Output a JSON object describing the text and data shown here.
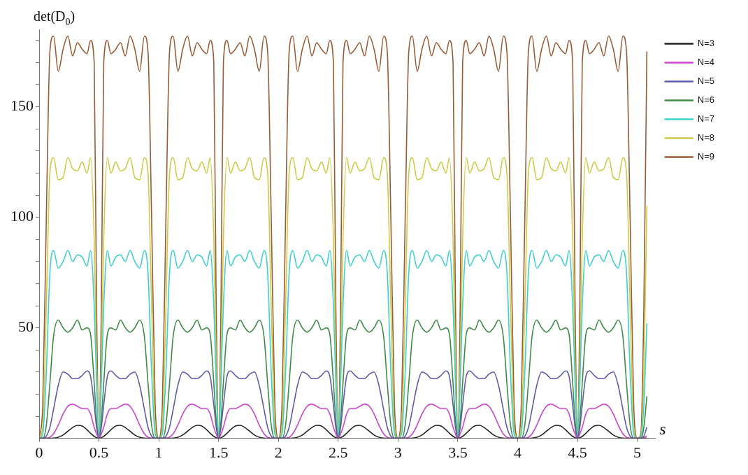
{
  "chart_data": {
    "type": "line",
    "xlabel": "s",
    "ylabel": "det(D$_{0}$)",
    "xlim": [
      0,
      5.15
    ],
    "ylim": [
      0,
      185
    ],
    "xticks": [
      0,
      0.5,
      1,
      1.5,
      2,
      2.5,
      3,
      3.5,
      4,
      4.5,
      5
    ],
    "yticks": [
      {
        "value": 10,
        "label": null
      },
      {
        "value": 20,
        "label": null
      },
      {
        "value": 30,
        "label": null
      },
      {
        "value": 40,
        "label": null
      },
      50,
      {
        "value": 60,
        "label": null
      },
      {
        "value": 70,
        "label": null
      },
      {
        "value": 80,
        "label": null
      },
      {
        "value": 90,
        "label": null
      },
      100,
      {
        "value": 110,
        "label": null
      },
      {
        "value": 120,
        "label": null
      },
      {
        "value": 130,
        "label": null
      },
      {
        "value": 140,
        "label": null
      },
      150,
      {
        "value": 160,
        "label": null
      },
      {
        "value": 170,
        "label": null
      },
      {
        "value": 180,
        "label": null
      }
    ],
    "legend": "right",
    "x": [
      0,
      0.03,
      0.06,
      0.09,
      0.12,
      0.16,
      0.2,
      0.24,
      0.28,
      0.32,
      0.36,
      0.4,
      0.43,
      0.46,
      0.48,
      0.5,
      0.52,
      0.54,
      0.57,
      0.6,
      0.64,
      0.68,
      0.72,
      0.76,
      0.8,
      0.84,
      0.88,
      0.91,
      0.94,
      0.97,
      1,
      1.03,
      1.06,
      1.09,
      1.12,
      1.16,
      1.2,
      1.24,
      1.28,
      1.32,
      1.36,
      1.4,
      1.43,
      1.46,
      1.48,
      1.5,
      1.52,
      1.54,
      1.57,
      1.6,
      1.64,
      1.68,
      1.72,
      1.76,
      1.8,
      1.84,
      1.88,
      1.91,
      1.94,
      1.97,
      2,
      2.03,
      2.06,
      2.09,
      2.12,
      2.16,
      2.2,
      2.24,
      2.28,
      2.32,
      2.36,
      2.4,
      2.43,
      2.46,
      2.48,
      2.5,
      2.52,
      2.54,
      2.57,
      2.6,
      2.64,
      2.68,
      2.72,
      2.76,
      2.8,
      2.84,
      2.88,
      2.91,
      2.94,
      2.97,
      3,
      3.03,
      3.06,
      3.09,
      3.12,
      3.16,
      3.2,
      3.24,
      3.28,
      3.32,
      3.36,
      3.4,
      3.43,
      3.46,
      3.48,
      3.5,
      3.52,
      3.54,
      3.57,
      3.6,
      3.64,
      3.68,
      3.72,
      3.76,
      3.8,
      3.84,
      3.88,
      3.91,
      3.94,
      3.97,
      4,
      4.03,
      4.06,
      4.09,
      4.12,
      4.16,
      4.2,
      4.24,
      4.28,
      4.32,
      4.36,
      4.4,
      4.43,
      4.46,
      4.48,
      4.5,
      4.52,
      4.54,
      4.57,
      4.6,
      4.64,
      4.68,
      4.72,
      4.76,
      4.8,
      4.84,
      4.88,
      4.91,
      4.94,
      4.97,
      5,
      5.03,
      5.055,
      5.08
    ],
    "series": [
      {
        "name": "N=3",
        "color": "#222222",
        "values": [
          0,
          0,
          0,
          0,
          0.1,
          0.5,
          1.5,
          3.2,
          4.9,
          5.9,
          5.6,
          3.9,
          2.3,
          0.9,
          0.3,
          0,
          0.3,
          0.9,
          2.3,
          3.9,
          5.6,
          5.9,
          4.9,
          3.2,
          1.5,
          0.5,
          0.1,
          0,
          0,
          0,
          0,
          0,
          0,
          0,
          0.1,
          0.5,
          1.5,
          3.2,
          4.9,
          5.9,
          5.6,
          3.9,
          2.3,
          0.9,
          0.3,
          0,
          0.3,
          0.9,
          2.3,
          3.9,
          5.6,
          5.9,
          4.9,
          3.2,
          1.5,
          0.5,
          0.1,
          0,
          0,
          0,
          0,
          0,
          0,
          0,
          0.1,
          0.5,
          1.5,
          3.2,
          4.9,
          5.9,
          5.6,
          3.9,
          2.3,
          0.9,
          0.3,
          0,
          0.3,
          0.9,
          2.3,
          3.9,
          5.6,
          5.9,
          4.9,
          3.2,
          1.5,
          0.5,
          0.1,
          0,
          0,
          0,
          0,
          0,
          0,
          0,
          0.1,
          0.5,
          1.5,
          3.2,
          4.9,
          5.9,
          5.6,
          3.9,
          2.3,
          0.9,
          0.3,
          0,
          0.3,
          0.9,
          2.3,
          3.9,
          5.6,
          5.9,
          4.9,
          3.2,
          1.5,
          0.5,
          0.1,
          0,
          0,
          0,
          0,
          0,
          0,
          0,
          0.1,
          0.5,
          1.5,
          3.2,
          4.9,
          5.9,
          5.6,
          3.9,
          2.3,
          0.9,
          0.3,
          0,
          0.3,
          0.9,
          2.3,
          3.9,
          5.6,
          5.9,
          4.9,
          3.2,
          1.5,
          0.5,
          0.1,
          0,
          0,
          0,
          0,
          0,
          0,
          0
        ]
      },
      {
        "name": "N=4",
        "color": "#cc44cc",
        "values": [
          0,
          0,
          0,
          0.5,
          2,
          6,
          11,
          14.5,
          15.5,
          14.5,
          13.5,
          13.5,
          11,
          5,
          2,
          0,
          2,
          5,
          11,
          13.5,
          13.5,
          14.5,
          15.5,
          14.5,
          11,
          6,
          2,
          0.5,
          0,
          0,
          0,
          0,
          0,
          0.5,
          2,
          6,
          11,
          14.5,
          15.5,
          14.5,
          13.5,
          13.5,
          11,
          5,
          2,
          0,
          2,
          5,
          11,
          13.5,
          13.5,
          14.5,
          15.5,
          14.5,
          11,
          6,
          2,
          0.5,
          0,
          0,
          0,
          0,
          0,
          0.5,
          2,
          6,
          11,
          14.5,
          15.5,
          14.5,
          13.5,
          13.5,
          11,
          5,
          2,
          0,
          2,
          5,
          11,
          13.5,
          13.5,
          14.5,
          15.5,
          14.5,
          11,
          6,
          2,
          0.5,
          0,
          0,
          0,
          0,
          0,
          0.5,
          2,
          6,
          11,
          14.5,
          15.5,
          14.5,
          13.5,
          13.5,
          11,
          5,
          2,
          0,
          2,
          5,
          11,
          13.5,
          13.5,
          14.5,
          15.5,
          14.5,
          11,
          6,
          2,
          0.5,
          0,
          0,
          0,
          0,
          0,
          0.5,
          2,
          6,
          11,
          14.5,
          15.5,
          14.5,
          13.5,
          13.5,
          11,
          5,
          2,
          0,
          2,
          5,
          11,
          13.5,
          13.5,
          14.5,
          15.5,
          14.5,
          11,
          6,
          2,
          0.5,
          0,
          0,
          0,
          0,
          0.3,
          1
        ]
      },
      {
        "name": "N=5",
        "color": "#5c5caa",
        "values": [
          0,
          0,
          1,
          5,
          13,
          24,
          30,
          29,
          27,
          27,
          28.5,
          30.5,
          28,
          15,
          5,
          0,
          5,
          15,
          28,
          30.5,
          28.5,
          27,
          27,
          29,
          30,
          24,
          13,
          5,
          1,
          0,
          0,
          0,
          1,
          5,
          13,
          24,
          30,
          29,
          27,
          27,
          28.5,
          30.5,
          28,
          15,
          5,
          0,
          5,
          15,
          28,
          30.5,
          28.5,
          27,
          27,
          29,
          30,
          24,
          13,
          5,
          1,
          0,
          0,
          0,
          1,
          5,
          13,
          24,
          30,
          29,
          27,
          27,
          28.5,
          30.5,
          28,
          15,
          5,
          0,
          5,
          15,
          28,
          30.5,
          28.5,
          27,
          27,
          29,
          30,
          24,
          13,
          5,
          1,
          0,
          0,
          0,
          1,
          5,
          13,
          24,
          30,
          29,
          27,
          27,
          28.5,
          30.5,
          28,
          15,
          5,
          0,
          5,
          15,
          28,
          30.5,
          28.5,
          27,
          27,
          29,
          30,
          24,
          13,
          5,
          1,
          0,
          0,
          0,
          1,
          5,
          13,
          24,
          30,
          29,
          27,
          27,
          28.5,
          30.5,
          28,
          15,
          5,
          0,
          5,
          15,
          28,
          30.5,
          28.5,
          27,
          27,
          29,
          30,
          24,
          13,
          5,
          1,
          0,
          0,
          0,
          1,
          5
        ]
      },
      {
        "name": "N=6",
        "color": "#3f8a46",
        "values": [
          0,
          0,
          6,
          25,
          46,
          53.5,
          50,
          48,
          50,
          53.5,
          49,
          50,
          47,
          25,
          8,
          0,
          8,
          25,
          47,
          50,
          49,
          53.5,
          50,
          48,
          50,
          53.5,
          46,
          25,
          6,
          0,
          0,
          0,
          6,
          25,
          46,
          53.5,
          50,
          48,
          50,
          53.5,
          49,
          50,
          47,
          25,
          8,
          0,
          8,
          25,
          47,
          50,
          49,
          53.5,
          50,
          48,
          50,
          53.5,
          46,
          25,
          6,
          0,
          0,
          0,
          6,
          25,
          46,
          53.5,
          50,
          48,
          50,
          53.5,
          49,
          50,
          47,
          25,
          8,
          0,
          8,
          25,
          47,
          50,
          49,
          53.5,
          50,
          48,
          50,
          53.5,
          46,
          25,
          6,
          0,
          0,
          0,
          6,
          25,
          46,
          53.5,
          50,
          48,
          50,
          53.5,
          49,
          50,
          47,
          25,
          8,
          0,
          8,
          25,
          47,
          50,
          49,
          53.5,
          50,
          48,
          50,
          53.5,
          46,
          25,
          6,
          0,
          0,
          0,
          6,
          25,
          46,
          53.5,
          50,
          48,
          50,
          53.5,
          49,
          50,
          47,
          25,
          8,
          0,
          8,
          25,
          47,
          50,
          49,
          53.5,
          50,
          48,
          50,
          53.5,
          46,
          25,
          6,
          0,
          0,
          0,
          5,
          19
        ]
      },
      {
        "name": "N=7",
        "color": "#3ccfcf",
        "values": [
          0,
          2,
          30,
          75,
          85,
          77,
          80,
          85,
          80,
          83,
          82,
          78,
          85,
          60,
          25,
          0,
          25,
          60,
          85,
          78,
          82,
          83,
          80,
          85,
          80,
          77,
          85,
          75,
          30,
          2,
          0,
          2,
          30,
          75,
          85,
          77,
          80,
          85,
          80,
          83,
          82,
          78,
          85,
          60,
          25,
          0,
          25,
          60,
          85,
          78,
          82,
          83,
          80,
          85,
          80,
          77,
          85,
          75,
          30,
          2,
          0,
          2,
          30,
          75,
          85,
          77,
          80,
          85,
          80,
          83,
          82,
          78,
          85,
          60,
          25,
          0,
          25,
          60,
          85,
          78,
          82,
          83,
          80,
          85,
          80,
          77,
          85,
          75,
          30,
          2,
          0,
          2,
          30,
          75,
          85,
          77,
          80,
          85,
          80,
          83,
          82,
          78,
          85,
          60,
          25,
          0,
          25,
          60,
          85,
          78,
          82,
          83,
          80,
          85,
          80,
          77,
          85,
          75,
          30,
          2,
          0,
          2,
          30,
          75,
          85,
          77,
          80,
          85,
          80,
          83,
          82,
          78,
          85,
          60,
          25,
          0,
          25,
          60,
          85,
          78,
          82,
          83,
          80,
          85,
          80,
          77,
          85,
          75,
          30,
          2,
          0,
          0.5,
          15,
          52
        ]
      },
      {
        "name": "N=8",
        "color": "#cccc44",
        "values": [
          0,
          5,
          60,
          120,
          127,
          117,
          118,
          127,
          122,
          121,
          125,
          120,
          127,
          90,
          35,
          0,
          35,
          90,
          127,
          120,
          125,
          121,
          122,
          127,
          118,
          117,
          127,
          120,
          60,
          5,
          0,
          5,
          60,
          120,
          127,
          117,
          118,
          127,
          122,
          121,
          125,
          120,
          127,
          90,
          35,
          0,
          35,
          90,
          127,
          120,
          125,
          121,
          122,
          127,
          118,
          117,
          127,
          120,
          60,
          5,
          0,
          5,
          60,
          120,
          127,
          117,
          118,
          127,
          122,
          121,
          125,
          120,
          127,
          90,
          35,
          0,
          35,
          90,
          127,
          120,
          125,
          121,
          122,
          127,
          118,
          117,
          127,
          120,
          60,
          5,
          0,
          5,
          60,
          120,
          127,
          117,
          118,
          127,
          122,
          121,
          125,
          120,
          127,
          90,
          35,
          0,
          35,
          90,
          127,
          120,
          125,
          121,
          122,
          127,
          118,
          117,
          127,
          120,
          60,
          5,
          0,
          5,
          60,
          120,
          127,
          117,
          118,
          127,
          122,
          121,
          125,
          120,
          127,
          90,
          35,
          0,
          35,
          90,
          127,
          120,
          125,
          121,
          122,
          127,
          118,
          117,
          127,
          120,
          60,
          5,
          0,
          1,
          30,
          105
        ]
      },
      {
        "name": "N=9",
        "color": "#9a5a36",
        "values": [
          0,
          15,
          100,
          175,
          182,
          166,
          176,
          182,
          173,
          179,
          176,
          174,
          180,
          170,
          60,
          0,
          60,
          170,
          180,
          174,
          176,
          179,
          173,
          182,
          176,
          166,
          182,
          175,
          100,
          15,
          0,
          15,
          100,
          175,
          182,
          166,
          176,
          182,
          173,
          179,
          176,
          174,
          180,
          170,
          60,
          0,
          60,
          170,
          180,
          174,
          176,
          179,
          173,
          182,
          176,
          166,
          182,
          175,
          100,
          15,
          0,
          15,
          100,
          175,
          182,
          166,
          176,
          182,
          173,
          179,
          176,
          174,
          180,
          170,
          60,
          0,
          60,
          170,
          180,
          174,
          176,
          179,
          173,
          182,
          176,
          166,
          182,
          175,
          100,
          15,
          0,
          15,
          100,
          175,
          182,
          166,
          176,
          182,
          173,
          179,
          176,
          174,
          180,
          170,
          60,
          0,
          60,
          170,
          180,
          174,
          176,
          179,
          173,
          182,
          176,
          166,
          182,
          175,
          100,
          15,
          0,
          15,
          100,
          175,
          182,
          166,
          176,
          182,
          173,
          179,
          176,
          174,
          180,
          170,
          60,
          0,
          60,
          170,
          180,
          174,
          176,
          179,
          173,
          182,
          176,
          166,
          182,
          175,
          100,
          15,
          0,
          2,
          60,
          175
        ]
      }
    ]
  }
}
